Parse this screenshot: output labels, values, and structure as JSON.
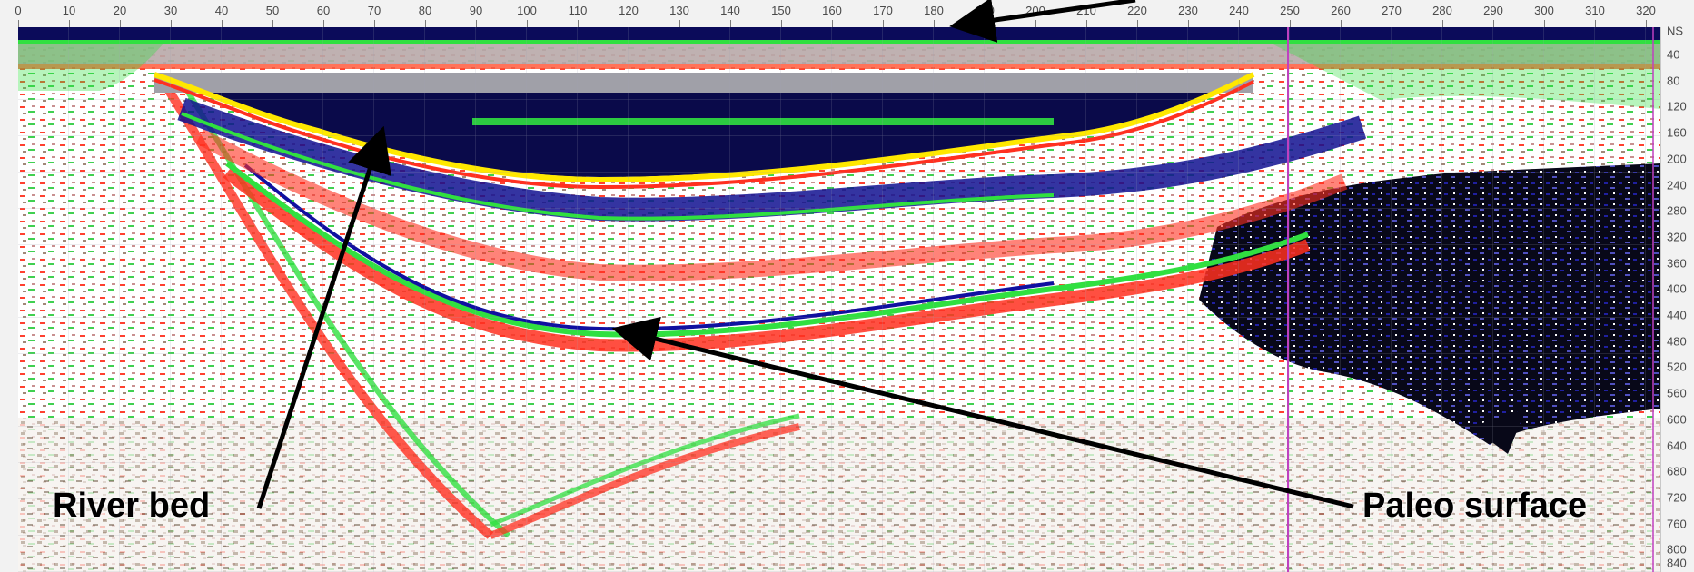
{
  "top_ruler": {
    "labels": [
      "0",
      "10",
      "20",
      "30",
      "40",
      "50",
      "60",
      "70",
      "80",
      "90",
      "100",
      "110",
      "120",
      "130",
      "140",
      "150",
      "160",
      "170",
      "180",
      "190",
      "200",
      "210",
      "220",
      "230",
      "240",
      "250",
      "260",
      "270",
      "280",
      "290",
      "300",
      "310",
      "320"
    ]
  },
  "right_ruler": {
    "unit": "NS",
    "labels": [
      "40",
      "80",
      "120",
      "160",
      "200",
      "240",
      "280",
      "320",
      "360",
      "400",
      "440",
      "480",
      "520",
      "560",
      "600",
      "640",
      "680",
      "720",
      "760",
      "800",
      "840"
    ]
  },
  "annotations": {
    "river_bed": "River bed",
    "paleo_surface": "Paleo surface"
  },
  "colors": {
    "arrow": "#000000",
    "marker_line": "#c040c0",
    "water_dark": "#0a0a4a",
    "horizon_yellow": "#ffe800",
    "horizon_green": "#30e040",
    "horizon_red": "#ff3020",
    "noise_white": "#ffffff"
  }
}
